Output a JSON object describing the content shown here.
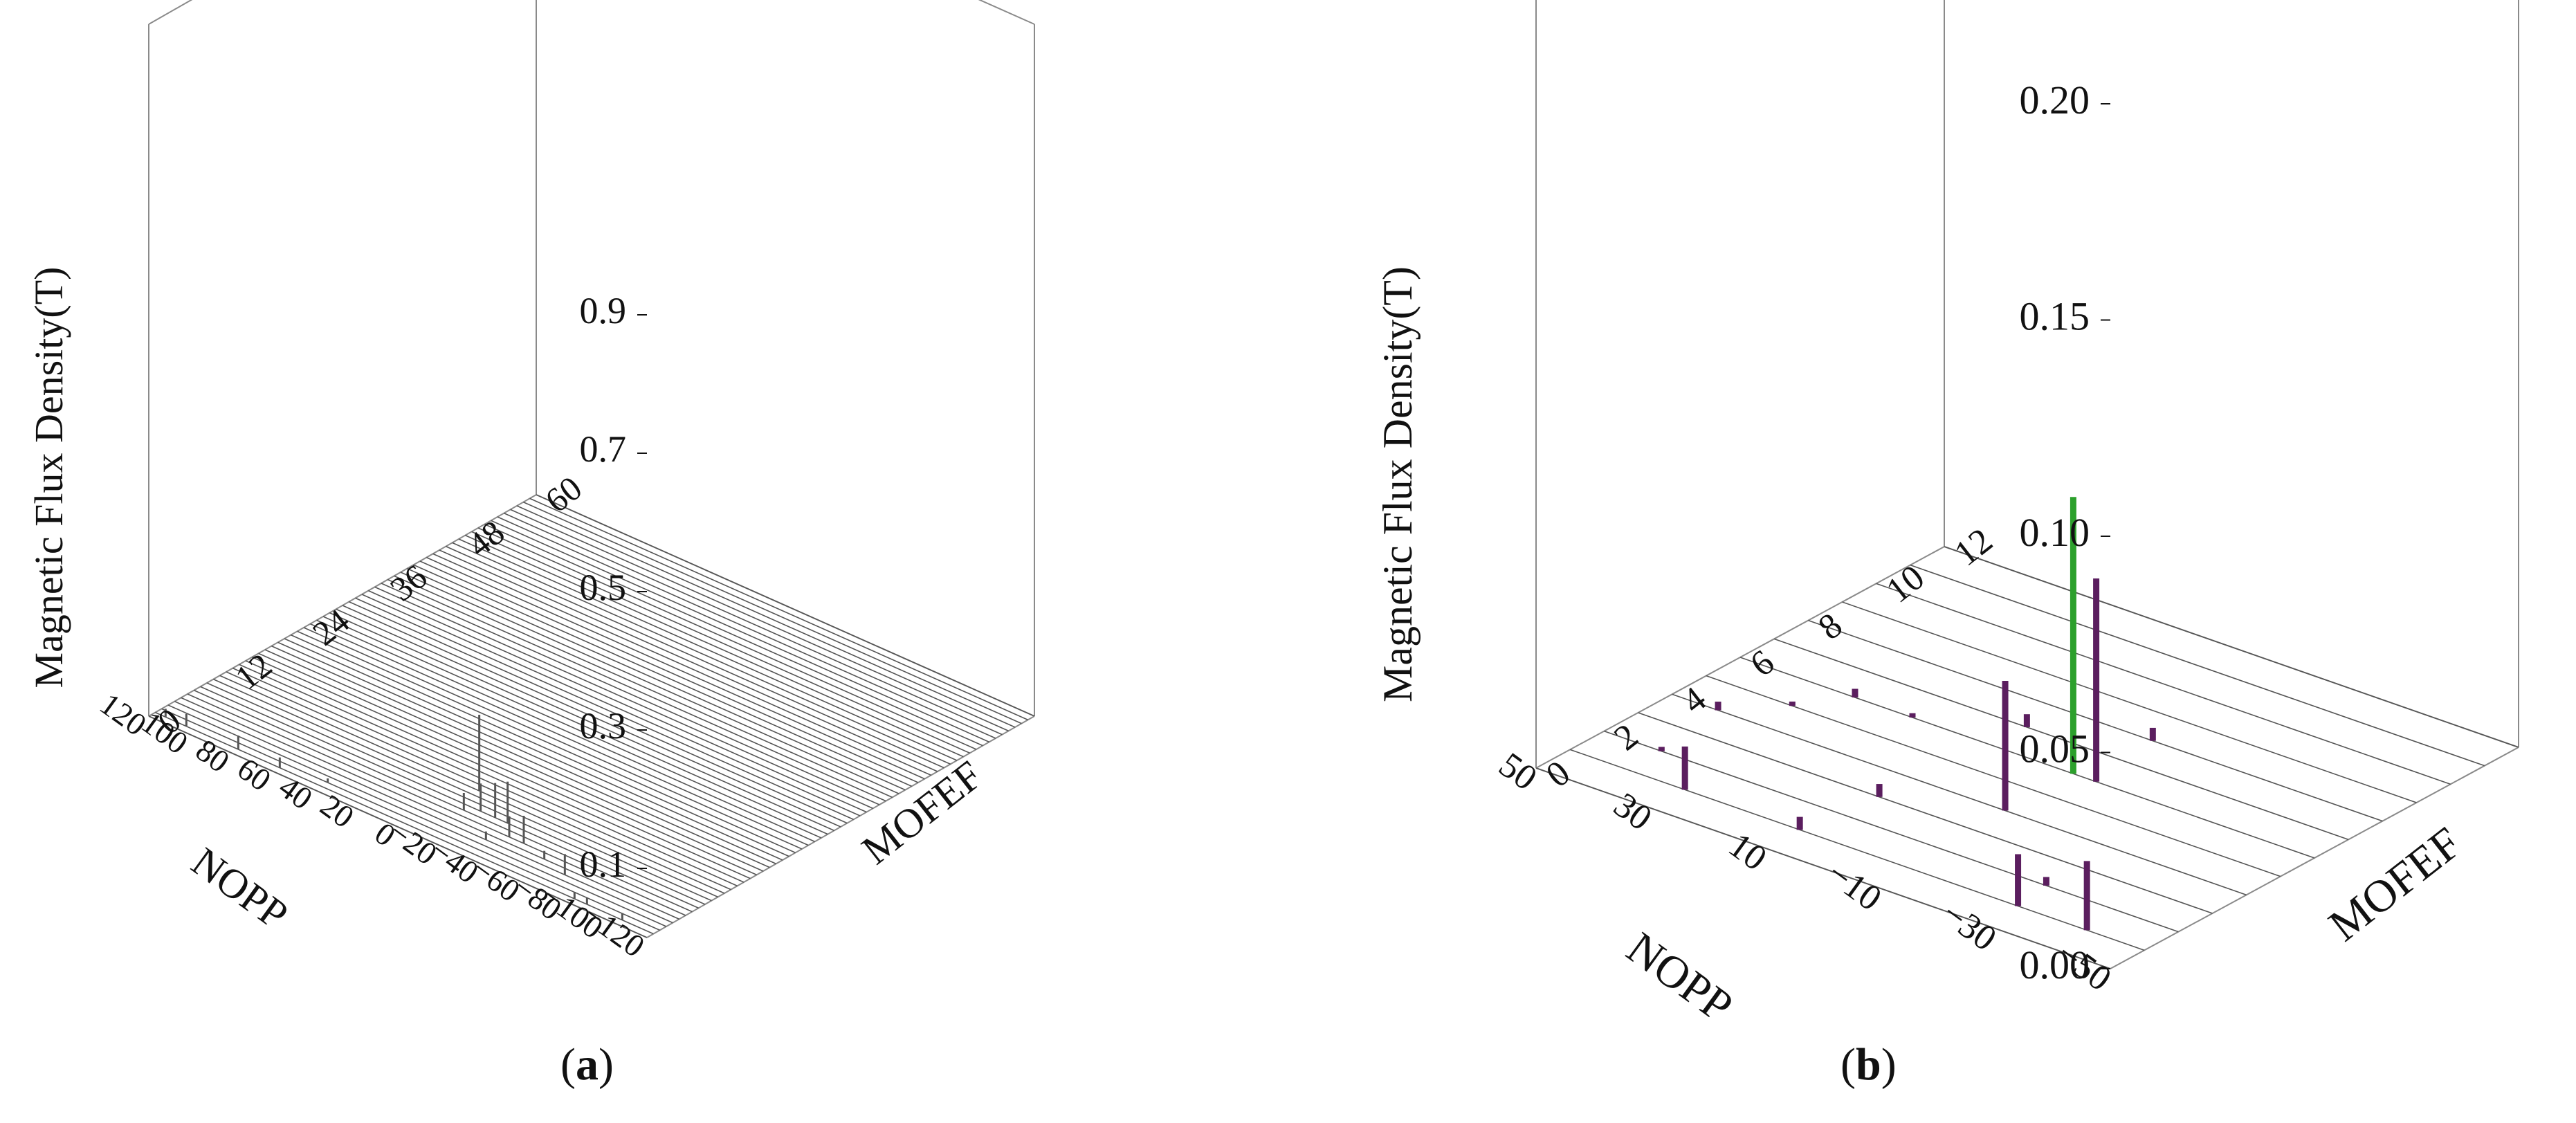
{
  "panels": [
    {
      "caption": "(a)",
      "caption_letter": "a",
      "chart_data": {
        "type": "bar3d",
        "zlabel": "Magnetic Flux Density(T)",
        "xlabel": "NOPP",
        "ylabel": "MOFEF",
        "x_ticks": [
          "−120",
          "−100",
          "−80",
          "−60",
          "−40",
          "−20",
          "0",
          "20",
          "40",
          "60",
          "80",
          "100",
          "120"
        ],
        "y_ticks": [
          "0",
          "12",
          "24",
          "36",
          "48",
          "60"
        ],
        "z_ticks": [
          "0.1",
          "0.3",
          "0.5",
          "0.7",
          "0.9"
        ],
        "xlim": [
          -120,
          120
        ],
        "ylim": [
          0,
          60
        ],
        "zlim": [
          0,
          1.0
        ],
        "floor_lines": 61,
        "bars": [
          {
            "x": -105,
            "y": 1,
            "z": 0.01
          },
          {
            "x": -88,
            "y": 1,
            "z": 0.01
          },
          {
            "x": -82,
            "y": 1,
            "z": 0.01
          },
          {
            "x": -68,
            "y": 4,
            "z": 0.03
          },
          {
            "x": -55,
            "y": 5,
            "z": 0.012
          },
          {
            "x": -42,
            "y": 6,
            "z": 0.04
          },
          {
            "x": -35,
            "y": 6,
            "z": 0.03
          },
          {
            "x": -30,
            "y": 4,
            "z": 0.012
          },
          {
            "x": -28,
            "y": 8,
            "z": 0.06
          },
          {
            "x": -22,
            "y": 8,
            "z": 0.05
          },
          {
            "x": -15,
            "y": 8,
            "z": 0.04
          },
          {
            "x": -10,
            "y": 7,
            "z": 0.025
          },
          {
            "x": -5,
            "y": 11,
            "z": 0.11
          },
          {
            "x": 40,
            "y": 2,
            "z": 0.006
          },
          {
            "x": 60,
            "y": 1,
            "z": 0.015
          },
          {
            "x": 80,
            "y": 1,
            "z": 0.02
          },
          {
            "x": 105,
            "y": 1,
            "z": 0.018
          },
          {
            "x": 115,
            "y": 1,
            "z": 0.012
          }
        ],
        "bar_color": "#555555"
      }
    },
    {
      "caption": "(b)",
      "caption_letter": "b",
      "chart_data": {
        "type": "bar3d",
        "zlabel": "Magnetic Flux Density(T)",
        "xlabel": "NOPP",
        "ylabel": "MOFEF",
        "x_ticks": [
          "−50",
          "−30",
          "−10",
          "10",
          "30",
          "50"
        ],
        "y_ticks": [
          "0",
          "2",
          "4",
          "6",
          "8",
          "10",
          "12"
        ],
        "z_ticks": [
          "0.00",
          "0.05",
          "0.10",
          "0.15",
          "0.20"
        ],
        "xlim": [
          -50,
          50
        ],
        "ylim": [
          0,
          12
        ],
        "zlim": [
          0,
          0.2
        ],
        "floor_lines": 13,
        "bars": [
          {
            "x": -40,
            "y": 1,
            "z": 0.016,
            "color": "#5b1e5f"
          },
          {
            "x": -28,
            "y": 1,
            "z": 0.012,
            "color": "#5b1e5f"
          },
          {
            "x": -27,
            "y": 2,
            "z": 0.002,
            "color": "#5b1e5f"
          },
          {
            "x": -12,
            "y": 6,
            "z": 0.047,
            "color": "#5b1e5f"
          },
          {
            "x": -8,
            "y": 4,
            "z": 0.03,
            "color": "#5b1e5f"
          },
          {
            "x": -8,
            "y": 6,
            "z": 0.064,
            "color": "#2ca02c"
          },
          {
            "x": -10,
            "y": 8,
            "z": 0.003,
            "color": "#5b1e5f"
          },
          {
            "x": 6,
            "y": 7,
            "z": 0.003,
            "color": "#5b1e5f"
          },
          {
            "x": 8,
            "y": 3,
            "z": 0.003,
            "color": "#5b1e5f"
          },
          {
            "x": 10,
            "y": 1,
            "z": 0.003,
            "color": "#5b1e5f"
          },
          {
            "x": 30,
            "y": 1,
            "z": 0.01,
            "color": "#5b1e5f"
          },
          {
            "x": 20,
            "y": 6,
            "z": 0.001,
            "color": "#5b1e5f"
          },
          {
            "x": 30,
            "y": 6,
            "z": 0.002,
            "color": "#5b1e5f"
          },
          {
            "x": 35,
            "y": 5,
            "z": 0.001,
            "color": "#5b1e5f"
          },
          {
            "x": 42,
            "y": 4,
            "z": 0.002,
            "color": "#5b1e5f"
          },
          {
            "x": 40,
            "y": 2,
            "z": 0.001,
            "color": "#5b1e5f"
          }
        ]
      }
    }
  ]
}
